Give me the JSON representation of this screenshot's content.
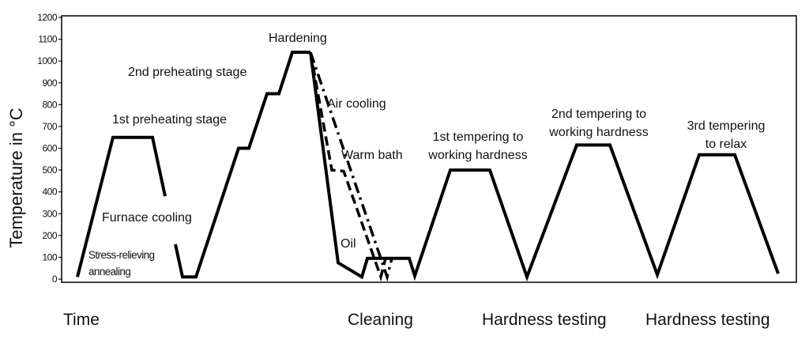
{
  "chart_data": {
    "type": "line",
    "ylabel": "Temperature in °C",
    "xlabel": "Time",
    "ylim": [
      0,
      1200
    ],
    "yticks": [
      "0",
      "100",
      "200",
      "300",
      "400",
      "500",
      "600",
      "700",
      "800",
      "900",
      "1000",
      "1100",
      "1200"
    ],
    "grid": false,
    "series": [
      {
        "name": "Stress-relieving annealing",
        "style": "solid",
        "points": [
          [
            18,
            10
          ],
          [
            63,
            650
          ],
          [
            113,
            650
          ],
          [
            129,
            380
          ]
        ]
      },
      {
        "name": "Furnace cooling",
        "style": "solid",
        "points": [
          [
            142,
            160
          ],
          [
            151,
            10
          ],
          [
            168,
            10
          ],
          [
            222,
            600
          ],
          [
            235,
            600
          ],
          [
            258,
            850
          ],
          [
            273,
            850
          ],
          [
            290,
            1040
          ],
          [
            313,
            1040
          ]
        ]
      },
      {
        "name": "Oil",
        "style": "solid",
        "points": [
          [
            313,
            1040
          ],
          [
            348,
            75
          ],
          [
            378,
            10
          ],
          [
            385,
            95
          ],
          [
            438,
            95
          ],
          [
            445,
            15
          ],
          [
            490,
            500
          ],
          [
            540,
            500
          ],
          [
            587,
            10
          ],
          [
            650,
            615
          ],
          [
            692,
            615
          ],
          [
            752,
            20
          ],
          [
            805,
            570
          ],
          [
            850,
            570
          ],
          [
            905,
            25
          ]
        ]
      },
      {
        "name": "Warm bath",
        "style": "dashed",
        "points": [
          [
            313,
            1040
          ],
          [
            340,
            500
          ],
          [
            355,
            495
          ],
          [
            402,
            10
          ],
          [
            408,
            95
          ]
        ]
      },
      {
        "name": "Air cooling",
        "style": "dashdot",
        "points": [
          [
            313,
            1040
          ],
          [
            410,
            10
          ],
          [
            416,
            95
          ]
        ]
      }
    ],
    "annotations": {
      "hardening": "Hardening",
      "preheat2": "2nd preheating stage",
      "preheat1": "1st preheating stage",
      "air": "Air cooling",
      "warm": "Warm bath",
      "temper1": [
        "1st tempering to",
        "working hardness"
      ],
      "temper2": [
        "2nd tempering to",
        "working hardness"
      ],
      "temper3": [
        "3rd tempering",
        "to relax"
      ],
      "furnace": "Furnace cooling",
      "oil": "Oil",
      "stress": [
        "Stress-relieving",
        "annealing"
      ]
    },
    "bottom_labels": {
      "time": "Time",
      "cleaning": "Cleaning",
      "hardness1": "Hardness testing",
      "hardness2": "Hardness testing"
    },
    "line_color": "#000000"
  }
}
